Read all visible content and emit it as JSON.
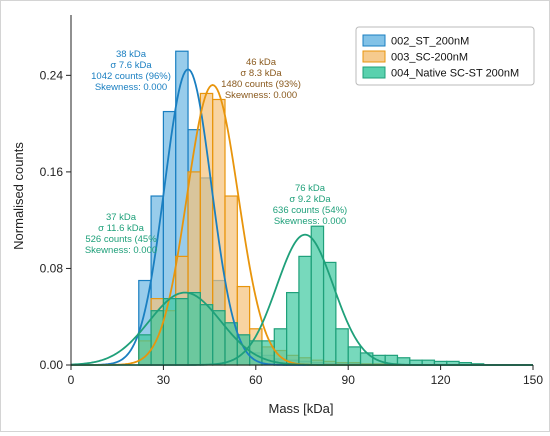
{
  "chart_data": {
    "type": "histogram",
    "xlabel": "Mass [kDa]",
    "ylabel": "Normalised counts",
    "xlim": [
      0,
      150
    ],
    "ylim": [
      0,
      0.29
    ],
    "xticks": [
      0,
      30,
      60,
      90,
      120,
      150
    ],
    "xtick_labels": [
      "0",
      "30",
      "60",
      "90",
      "120",
      "150"
    ],
    "yticks": [
      0,
      0.08,
      0.16,
      0.24
    ],
    "ytick_labels": [
      "0.00",
      "0.08",
      "0.16",
      "0.24"
    ],
    "grid": false,
    "legend_position": "top-right",
    "bin_edges": [
      22,
      26,
      30,
      34,
      38,
      42,
      46,
      50,
      54,
      58,
      62,
      66,
      70,
      74,
      78,
      82,
      86,
      90,
      94,
      98,
      102,
      106,
      110,
      114,
      118,
      122,
      126,
      130,
      134
    ],
    "series": [
      {
        "name": "002_ST_200nM",
        "color": "#1a7fc1",
        "fill": "#6cb7e3",
        "counts": [
          0.07,
          0.14,
          0.21,
          0.26,
          0.195,
          0.155,
          0.07,
          0.035,
          0.025,
          0.01,
          0.008,
          0.005,
          0.004,
          0.003,
          0.002,
          0.001,
          0.001,
          0.001,
          0,
          0,
          0,
          0,
          0,
          0,
          0,
          0,
          0,
          0
        ],
        "fit": {
          "mean": 38,
          "sigma": 7.6,
          "peak": 0.245
        },
        "annotation": [
          "38 kDa",
          "σ 7.6 kDa",
          "1042 counts (96%)",
          "Skewness: 0.000"
        ]
      },
      {
        "name": "003_SC-200nM",
        "color": "#e8950c",
        "fill": "#f5c27a",
        "counts": [
          0.02,
          0.055,
          0.045,
          0.09,
          0.16,
          0.225,
          0.22,
          0.14,
          0.065,
          0.03,
          0.015,
          0.012,
          0.008,
          0.006,
          0.004,
          0.003,
          0.002,
          0.002,
          0.001,
          0.001,
          0.001,
          0,
          0,
          0,
          0,
          0,
          0,
          0
        ],
        "fit": {
          "mean": 46,
          "sigma": 8.3,
          "peak": 0.232
        },
        "annotation": [
          "46 kDa",
          "σ 8.3 kDa",
          "1480 counts (93%)",
          "Skewness: 0.000"
        ]
      },
      {
        "name": "004_Native SC-ST 200nM",
        "color": "#1fa07a",
        "fill": "#3dc9a0",
        "counts": [
          0.025,
          0.045,
          0.055,
          0.055,
          0.06,
          0.05,
          0.045,
          0.035,
          0.025,
          0.02,
          0.02,
          0.03,
          0.06,
          0.09,
          0.115,
          0.085,
          0.03,
          0.015,
          0.01,
          0.008,
          0.008,
          0.006,
          0.004,
          0.004,
          0.003,
          0.003,
          0.002,
          0.001
        ],
        "fit": {
          "mean": 76,
          "sigma": 9.2,
          "peak": 0.108
        },
        "fit2": {
          "mean": 37,
          "sigma": 11.6,
          "peak": 0.06
        },
        "annotation": [
          "76 kDa",
          "σ 9.2 kDa",
          "636 counts (54%)",
          "Skewness: 0.000"
        ],
        "annotation2": [
          "37 kDa",
          "σ 11.6 kDa",
          "526 counts (45%",
          "Skewness: 0.000"
        ]
      }
    ]
  }
}
